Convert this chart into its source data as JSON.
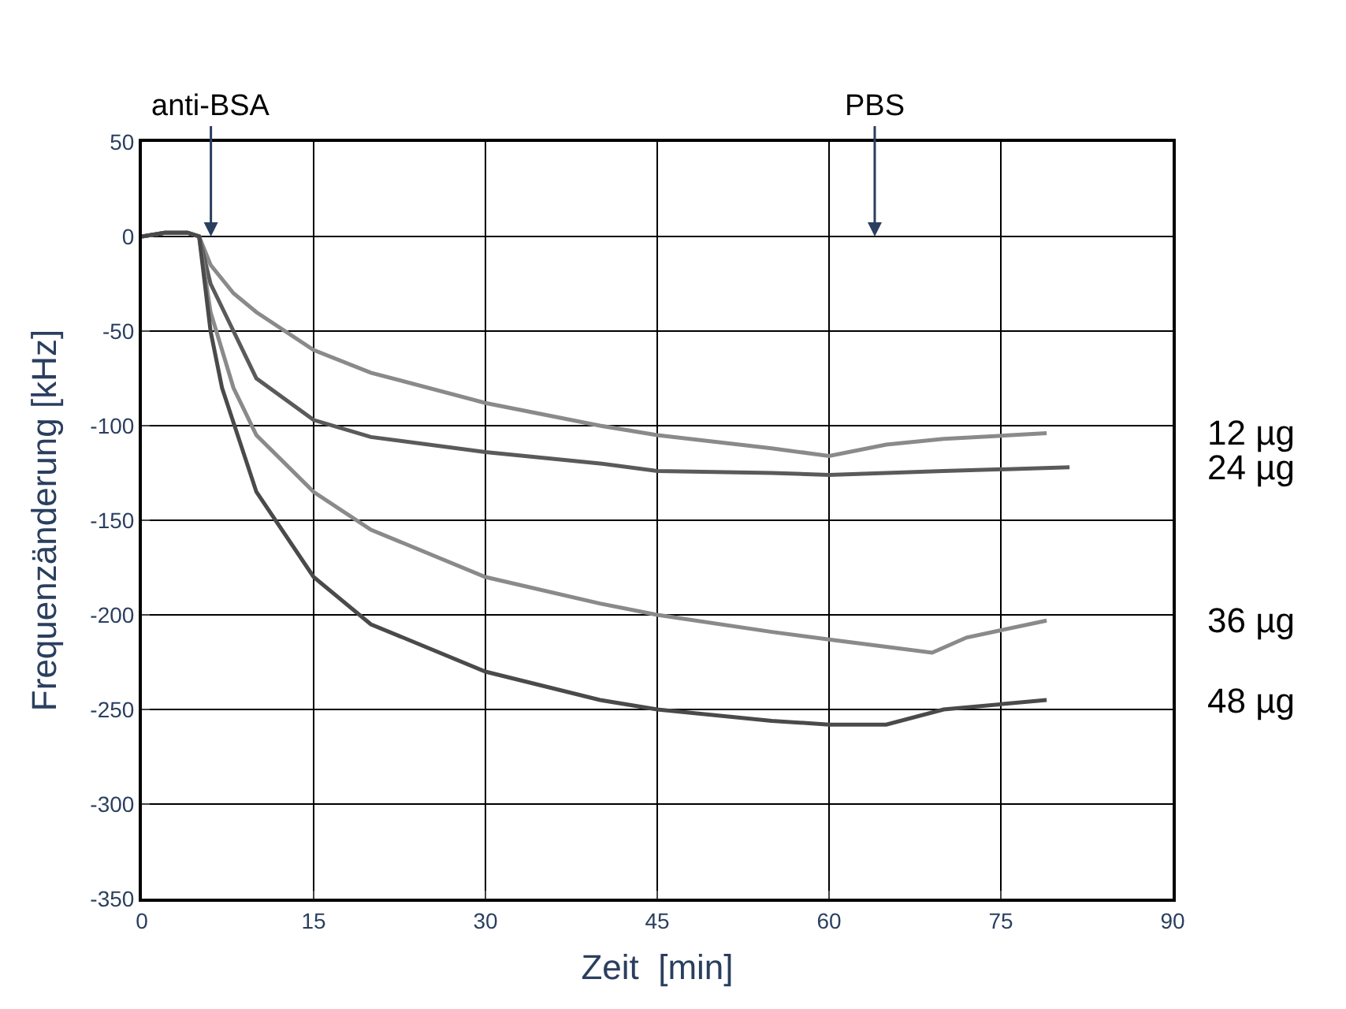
{
  "chart_data": {
    "type": "line",
    "xlabel": "Zeit  [min]",
    "ylabel": "Frequenzänderung [kHz]",
    "xlim": [
      0,
      90
    ],
    "xticks": [
      0,
      15,
      30,
      45,
      60,
      75,
      90
    ],
    "ylim": [
      -350,
      50
    ],
    "yticks": [
      -350,
      -300,
      -250,
      -200,
      -150,
      -100,
      -50,
      0,
      50
    ],
    "grid": true,
    "legend": false,
    "marker": "none",
    "line_style": "solid",
    "annotations": [
      "anti-BSA",
      "PBS"
    ],
    "series": [
      {
        "name": "12 µg",
        "color": "#8a8a8a",
        "x": [
          0,
          2,
          4,
          5,
          6,
          8,
          10,
          15,
          20,
          30,
          40,
          45,
          55,
          60,
          65,
          70,
          79
        ],
        "values": [
          0,
          2,
          2,
          0,
          -15,
          -30,
          -40,
          -60,
          -72,
          -88,
          -100,
          -105,
          -112,
          -116,
          -110,
          -107,
          -104
        ]
      },
      {
        "name": "24 µg",
        "color": "#5a5a5a",
        "x": [
          0,
          2,
          4,
          5,
          6,
          8,
          10,
          15,
          20,
          30,
          40,
          45,
          55,
          60,
          70,
          81
        ],
        "values": [
          0,
          2,
          2,
          0,
          -25,
          -50,
          -75,
          -97,
          -106,
          -114,
          -120,
          -124,
          -125,
          -126,
          -124,
          -122
        ]
      },
      {
        "name": "36 µg",
        "color": "#8a8a8a",
        "x": [
          0,
          2,
          4,
          5,
          6,
          8,
          10,
          15,
          20,
          30,
          40,
          45,
          55,
          60,
          69,
          72,
          79
        ],
        "values": [
          0,
          2,
          2,
          0,
          -40,
          -80,
          -105,
          -135,
          -155,
          -180,
          -194,
          -200,
          -209,
          -213,
          -220,
          -212,
          -203
        ]
      },
      {
        "name": "48 µg",
        "color": "#4a4a4a",
        "x": [
          0,
          2,
          4,
          5,
          6,
          7,
          10,
          15,
          20,
          30,
          40,
          45,
          55,
          60,
          65,
          70,
          79
        ],
        "values": [
          0,
          2,
          2,
          0,
          -50,
          -80,
          -135,
          -180,
          -205,
          -230,
          -245,
          -250,
          -256,
          -258,
          -258,
          -250,
          -245
        ]
      }
    ]
  }
}
